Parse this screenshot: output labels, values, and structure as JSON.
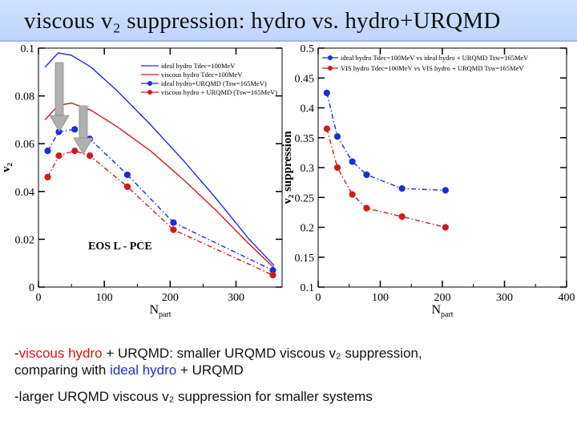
{
  "title": "viscous v₂ suppression:   hydro vs. hydro+URQMD",
  "notes": {
    "line1_prefix": " -",
    "line1_red": "viscous hydro",
    "line1_mid": " + URQMD: smaller URQMD viscous v₂ suppression,",
    "line1_cont_prefix": "comparing with  ",
    "line1_blue": "ideal hydro",
    "line1_end": " + URQMD",
    "line2": "-larger URQMD viscous v₂ suppression for smaller systems"
  },
  "colors": {
    "blue": "#1a2fd6",
    "red": "#d11a1a",
    "title_bar": "#c4d8ff"
  },
  "chart_data": [
    {
      "type": "line",
      "xlabel": "N_part",
      "ylabel": "v₂",
      "xlim": [
        0,
        370
      ],
      "ylim": [
        0,
        0.1
      ],
      "xticks": [
        0,
        100,
        200,
        300
      ],
      "xtick_labels": [
        "0",
        "100",
        "200",
        "300"
      ],
      "yticks": [
        0.1,
        0.08,
        0.06,
        0.04,
        0.02,
        0
      ],
      "ytick_labels": [
        "0.1",
        "0.08",
        "0.06",
        "0.04",
        "0.02",
        "0"
      ],
      "annotation": "EOS L - PCE",
      "legend": [
        "ideal hydro Tdec=100MeV",
        "viscous hydro Tdec=100MeV",
        "ideal hydro+URQMD (Tsw=165MeV)",
        "viscous hydro + URQMD (Tsw=165MeV)"
      ],
      "series": [
        {
          "name": "ideal hydro Tdec=100MeV",
          "color": "#1a2fd6",
          "style": "solid",
          "markers": false,
          "x": [
            10,
            30,
            50,
            80,
            120,
            170,
            220,
            270,
            320,
            358
          ],
          "y": [
            0.092,
            0.098,
            0.097,
            0.092,
            0.082,
            0.068,
            0.053,
            0.037,
            0.02,
            0.009
          ]
        },
        {
          "name": "viscous hydro Tdec=100MeV",
          "color": "#d11a1a",
          "style": "solid",
          "markers": false,
          "x": [
            10,
            30,
            50,
            80,
            120,
            170,
            220,
            270,
            320,
            358
          ],
          "y": [
            0.07,
            0.076,
            0.077,
            0.074,
            0.067,
            0.057,
            0.045,
            0.032,
            0.018,
            0.008
          ]
        },
        {
          "name": "ideal hydro+URQMD (Tsw=165MeV)",
          "color": "#1a2fd6",
          "style": "dashdot",
          "markers": true,
          "x": [
            14,
            31,
            55,
            78,
            135,
            205,
            356
          ],
          "y": [
            0.057,
            0.065,
            0.066,
            0.062,
            0.047,
            0.027,
            0.007
          ]
        },
        {
          "name": "viscous hydro + URQMD (Tsw=165MeV)",
          "color": "#d11a1a",
          "style": "dashdot",
          "markers": true,
          "x": [
            14,
            31,
            55,
            78,
            135,
            205,
            356
          ],
          "y": [
            0.046,
            0.055,
            0.057,
            0.055,
            0.042,
            0.024,
            0.005
          ]
        }
      ]
    },
    {
      "type": "line",
      "xlabel": "N_part",
      "ylabel": "v₂ suppression",
      "xlim": [
        0,
        400
      ],
      "ylim": [
        0.1,
        0.5
      ],
      "xticks": [
        0,
        100,
        200,
        300,
        400
      ],
      "xtick_labels": [
        "0",
        "100",
        "200",
        "300",
        "400"
      ],
      "yticks": [
        0.5,
        0.45,
        0.4,
        0.35,
        0.3,
        0.25,
        0.2,
        0.15,
        0.1
      ],
      "ytick_labels": [
        "0.5",
        "0.45",
        "0.4",
        "0.35",
        "0.3",
        "0.25",
        "0.2",
        "0.15",
        "0.1"
      ],
      "legend": [
        "ideal hydro Tdec=100MeV vs ideal hydro + URQMD Tsw=165MeV",
        "VIS hydro Tdec=100MeV vs VIS hydro + URQMD Tsw=165MeV"
      ],
      "series": [
        {
          "name": "ideal hydro Tdec=100MeV vs ideal hydro + URQMD Tsw=165MeV",
          "color": "#1a2fd6",
          "x": [
            14,
            31,
            55,
            78,
            135,
            205
          ],
          "y": [
            0.425,
            0.352,
            0.31,
            0.288,
            0.265,
            0.262
          ]
        },
        {
          "name": "VIS hydro Tdec=100MeV vs VIS hydro + URQMD Tsw=165MeV",
          "color": "#d11a1a",
          "x": [
            14,
            31,
            55,
            78,
            135,
            205
          ],
          "y": [
            0.365,
            0.3,
            0.255,
            0.232,
            0.218,
            0.2
          ]
        }
      ]
    }
  ]
}
